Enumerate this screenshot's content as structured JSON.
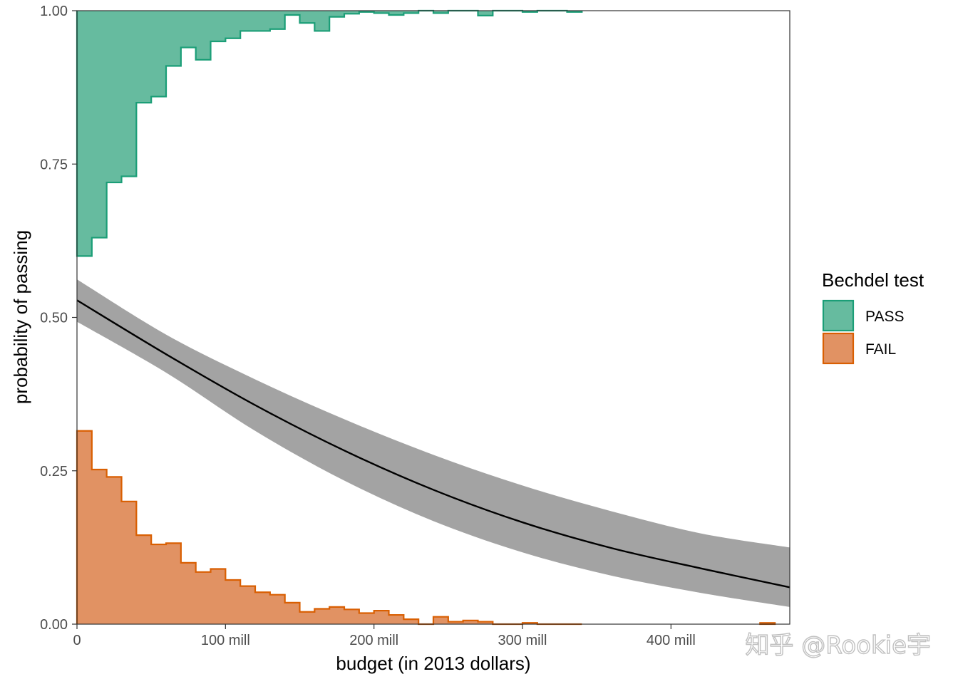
{
  "chart_data": {
    "type": "histogram+line",
    "xlabel": "budget (in 2013 dollars)",
    "ylabel": "probability of passing",
    "xlim": [
      0,
      480
    ],
    "ylim": [
      0,
      1
    ],
    "x_ticks": [
      {
        "value": 0,
        "label": "0"
      },
      {
        "value": 100,
        "label": "100 mill"
      },
      {
        "value": 200,
        "label": "200 mill"
      },
      {
        "value": 300,
        "label": "300 mill"
      },
      {
        "value": 400,
        "label": "400 mill"
      }
    ],
    "y_ticks": [
      {
        "value": 0,
        "label": "0.00"
      },
      {
        "value": 0.25,
        "label": "0.25"
      },
      {
        "value": 0.5,
        "label": "0.50"
      },
      {
        "value": 0.75,
        "label": "0.75"
      },
      {
        "value": 1,
        "label": "1.00"
      }
    ],
    "bin_width": 10,
    "bin_starts": [
      0,
      10,
      20,
      30,
      40,
      50,
      60,
      70,
      80,
      90,
      100,
      110,
      120,
      130,
      140,
      150,
      160,
      170,
      180,
      190,
      200,
      210,
      220,
      230,
      240,
      250,
      260,
      270,
      280,
      290,
      300,
      310,
      320,
      330
    ],
    "pass_tops": [
      0.6,
      0.63,
      0.72,
      0.73,
      0.85,
      0.86,
      0.91,
      0.94,
      0.92,
      0.95,
      0.955,
      0.967,
      0.967,
      0.97,
      0.993,
      0.98,
      0.967,
      0.99,
      0.995,
      0.998,
      0.996,
      0.993,
      0.996,
      1.0,
      0.996,
      1.0,
      1.0,
      0.992,
      1.0,
      1.0,
      0.998,
      1.0,
      1.0,
      0.998
    ],
    "fail_values": [
      0.315,
      0.252,
      0.24,
      0.2,
      0.145,
      0.13,
      0.132,
      0.1,
      0.085,
      0.09,
      0.072,
      0.062,
      0.052,
      0.048,
      0.035,
      0.02,
      0.025,
      0.028,
      0.024,
      0.018,
      0.022,
      0.015,
      0.008,
      0.0,
      0.012,
      0.004,
      0.006,
      0.004,
      0.0,
      0.0,
      0.002,
      0.0,
      0.0,
      0.0
    ],
    "fail_extra": [
      {
        "start": 460,
        "end": 470,
        "value": 0.002
      }
    ],
    "fit_line": {
      "x": [
        0,
        60,
        120,
        180,
        240,
        300,
        360,
        420,
        480
      ],
      "y": [
        0.528,
        0.44,
        0.357,
        0.283,
        0.219,
        0.166,
        0.124,
        0.091,
        0.06
      ],
      "lower": [
        0.493,
        0.41,
        0.315,
        0.234,
        0.168,
        0.117,
        0.079,
        0.051,
        0.028
      ],
      "upper": [
        0.562,
        0.472,
        0.399,
        0.334,
        0.276,
        0.226,
        0.184,
        0.148,
        0.125
      ]
    },
    "legend": {
      "title": "Bechdel test",
      "position": "right",
      "entries": [
        {
          "label": "PASS",
          "fill": "#66bb9f",
          "stroke": "#1b9e77"
        },
        {
          "label": "FAIL",
          "fill": "#e19263",
          "stroke": "#d95f02"
        }
      ]
    },
    "colors": {
      "ribbon": "#a3a3a3",
      "line": "#000000",
      "panel_border": "#333333"
    }
  },
  "watermark": "知乎 @Rookie宇"
}
